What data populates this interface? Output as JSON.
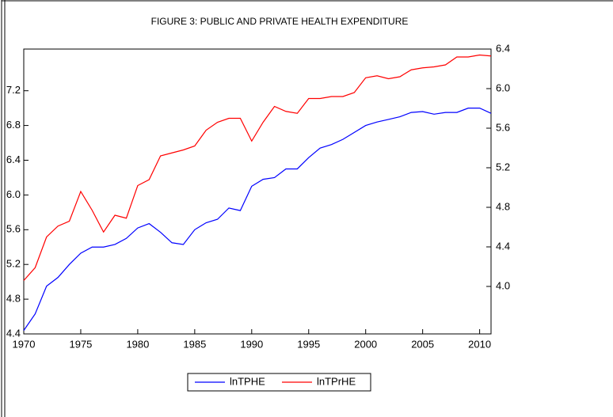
{
  "chart_data": {
    "type": "line",
    "title": "FIGURE 3: PUBLIC AND PRIVATE HEALTH EXPENDITURE",
    "x": [
      1970,
      1971,
      1972,
      1973,
      1974,
      1975,
      1976,
      1977,
      1978,
      1979,
      1980,
      1981,
      1982,
      1983,
      1984,
      1985,
      1986,
      1987,
      1988,
      1989,
      1990,
      1991,
      1992,
      1993,
      1994,
      1995,
      1996,
      1997,
      1998,
      1999,
      2000,
      2001,
      2002,
      2003,
      2004,
      2005,
      2006,
      2007,
      2008,
      2009,
      2010,
      2011
    ],
    "series": [
      {
        "name": "lnTPHE",
        "color": "#0000ff",
        "axis": "y",
        "values": [
          4.44,
          4.63,
          4.95,
          5.05,
          5.2,
          5.33,
          5.4,
          5.4,
          5.43,
          5.5,
          5.62,
          5.67,
          5.57,
          5.45,
          5.43,
          5.6,
          5.68,
          5.72,
          5.85,
          5.82,
          6.1,
          6.18,
          6.2,
          6.3,
          6.3,
          6.43,
          6.54,
          6.58,
          6.64,
          6.72,
          6.8,
          6.84,
          6.87,
          6.9,
          6.95,
          6.96,
          6.93,
          6.95,
          6.95,
          7.0,
          7.0,
          6.94
        ]
      },
      {
        "name": "lnTPrHE",
        "color": "#ff0000",
        "axis": "y2",
        "values": [
          4.06,
          4.19,
          4.5,
          4.61,
          4.66,
          4.96,
          4.77,
          4.55,
          4.72,
          4.69,
          5.02,
          5.08,
          5.32,
          5.35,
          5.38,
          5.42,
          5.58,
          5.66,
          5.7,
          5.7,
          5.47,
          5.66,
          5.82,
          5.77,
          5.75,
          5.9,
          5.9,
          5.92,
          5.92,
          5.96,
          6.11,
          6.13,
          6.1,
          6.12,
          6.19,
          6.21,
          6.22,
          6.24,
          6.32,
          6.32,
          6.34,
          6.33
        ]
      }
    ],
    "xlim": [
      1970,
      2011
    ],
    "xticks": [
      1970,
      1975,
      1980,
      1985,
      1990,
      1995,
      2000,
      2005,
      2010
    ],
    "ylim": [
      4.4,
      7.68
    ],
    "yticks": [
      4.4,
      4.8,
      5.2,
      5.6,
      {
        "value": 6,
        "label": "6.0"
      },
      6.4,
      6.8,
      7.2
    ],
    "y2lim": [
      3.52,
      6.4
    ],
    "y2ticks": [
      {
        "value": 4,
        "label": "4.0"
      },
      4.4,
      4.8,
      5.2,
      5.6,
      {
        "value": 6,
        "label": "6.0"
      },
      6.4
    ],
    "legend": "bottom"
  }
}
